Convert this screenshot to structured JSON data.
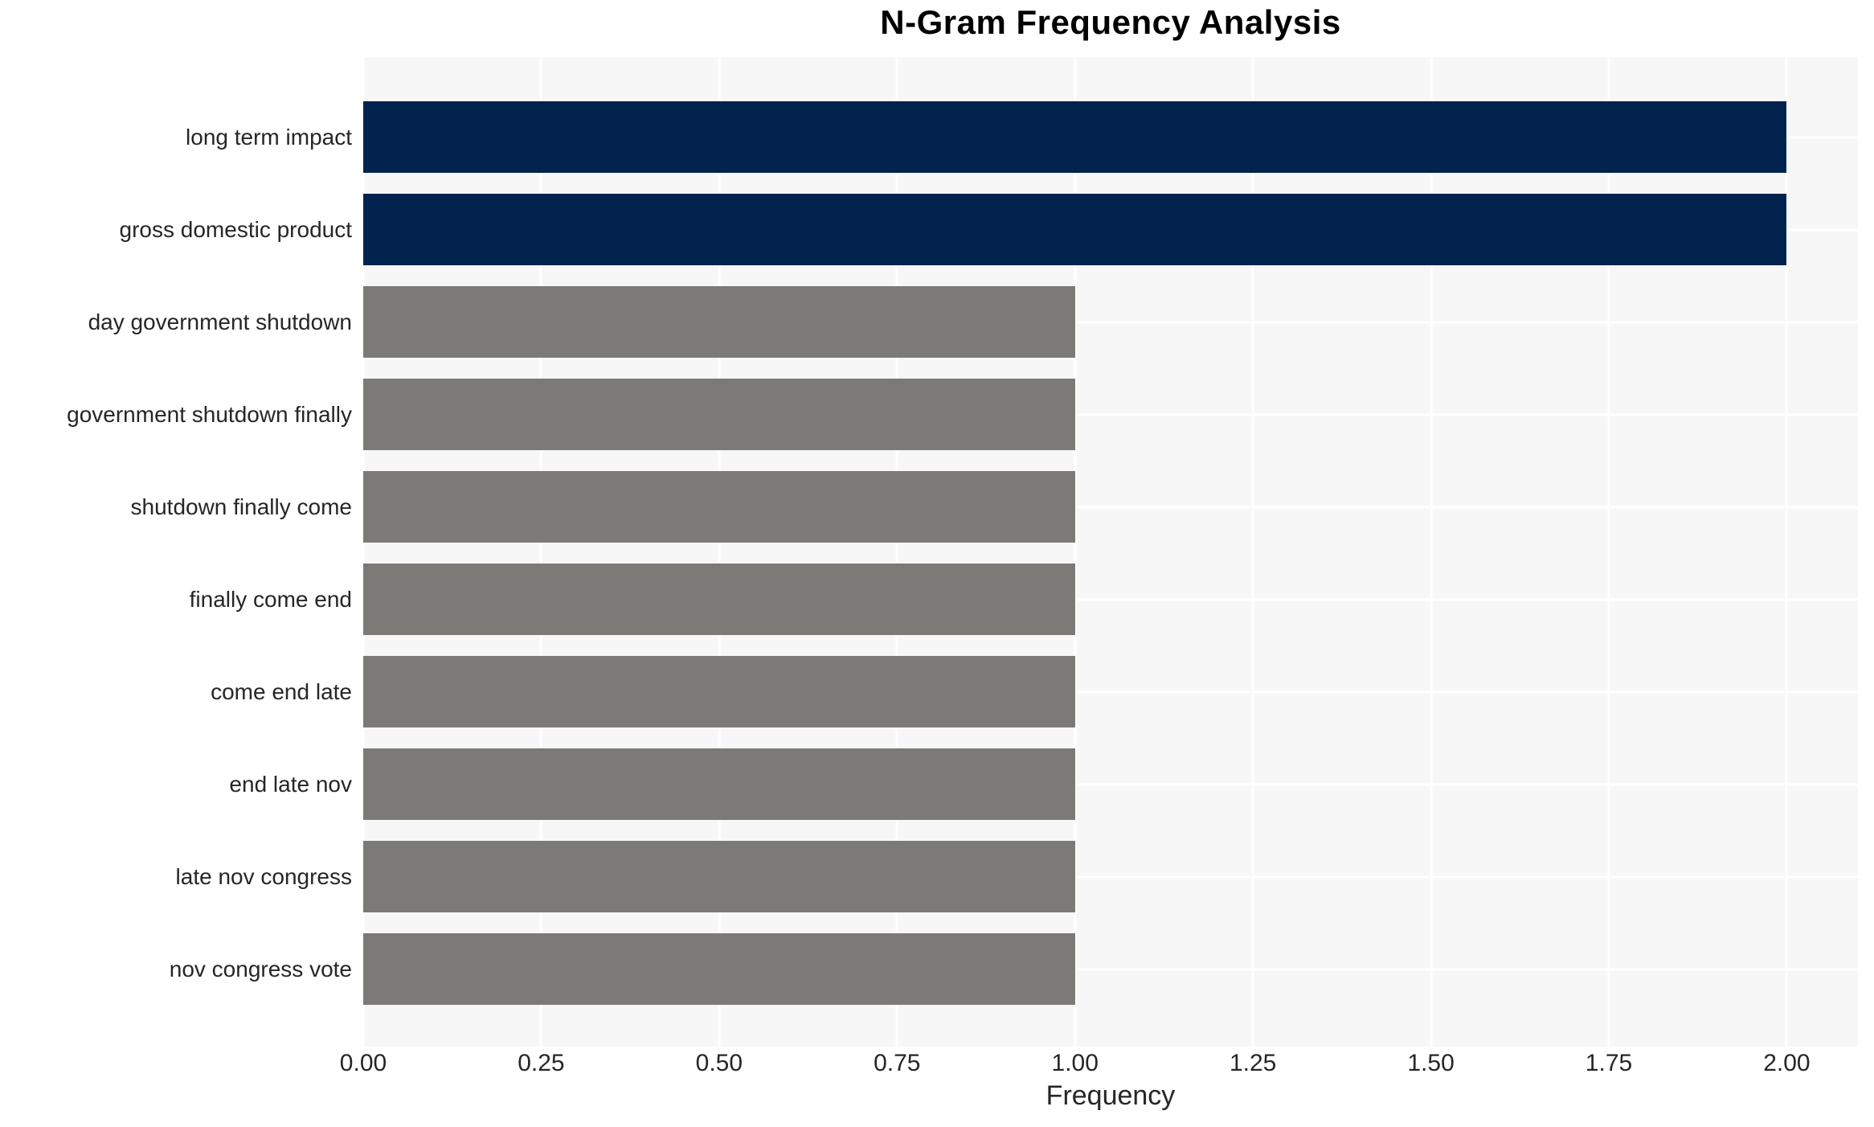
{
  "chart_data": {
    "type": "bar",
    "orientation": "horizontal",
    "title": "N-Gram Frequency Analysis",
    "xlabel": "Frequency",
    "ylabel": "",
    "categories": [
      "long term impact",
      "gross domestic product",
      "day government shutdown",
      "government shutdown finally",
      "shutdown finally come",
      "finally come end",
      "come end late",
      "end late nov",
      "late nov congress",
      "nov congress vote"
    ],
    "values": [
      2,
      2,
      1,
      1,
      1,
      1,
      1,
      1,
      1,
      1
    ],
    "bar_colors": [
      "#02234e",
      "#02234e",
      "#7b7a76",
      "#7b7a76",
      "#7b7a76",
      "#7b7a76",
      "#7b7a76",
      "#7b7a76",
      "#7b7a76",
      "#7b7a76"
    ],
    "x_ticks": [
      "0.00",
      "0.25",
      "0.50",
      "0.75",
      "1.00",
      "1.25",
      "1.50",
      "1.75",
      "2.00"
    ],
    "xlim": [
      0,
      2.1
    ],
    "grid": true,
    "legend": false,
    "colors": {
      "highlight_bar": "#02234e",
      "default_bar": "#7b7a76",
      "plot_background": "#f7f7f7",
      "figure_background": "#ffffff",
      "gridline": "#ffffff",
      "tick_text": "#262626",
      "title_text": "#000000"
    }
  }
}
